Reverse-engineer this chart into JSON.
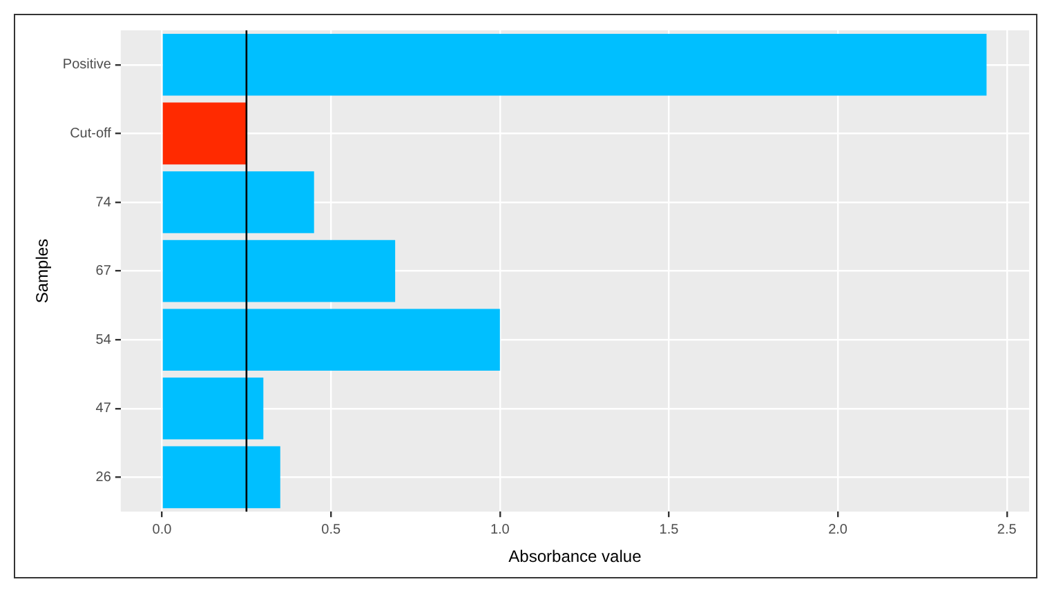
{
  "chart_data": {
    "type": "bar",
    "orientation": "horizontal",
    "xlabel": "Absorbance value",
    "ylabel": "Samples",
    "categories": [
      "Positive",
      "Cut-off",
      "74",
      "67",
      "54",
      "47",
      "26"
    ],
    "values": [
      2.44,
      0.25,
      0.45,
      0.69,
      1.0,
      0.3,
      0.35
    ],
    "colors": [
      "#00bfff",
      "#ff2a00",
      "#00bfff",
      "#00bfff",
      "#00bfff",
      "#00bfff",
      "#00bfff"
    ],
    "xlim": [
      -0.122,
      2.566
    ],
    "xticks": [
      {
        "value": 0,
        "label": "0.0"
      },
      {
        "value": 0.5,
        "label": "0.5"
      },
      {
        "value": 1,
        "label": "1.0"
      },
      {
        "value": 1.5,
        "label": "1.5"
      },
      {
        "value": 2,
        "label": "2.0"
      },
      {
        "value": 2.5,
        "label": "2.5"
      }
    ],
    "ref_lines": [
      {
        "axis": "x",
        "value": 0.25,
        "label": null,
        "color": "#000000",
        "line_style": "solid"
      }
    ],
    "grid": true,
    "legend": false
  }
}
